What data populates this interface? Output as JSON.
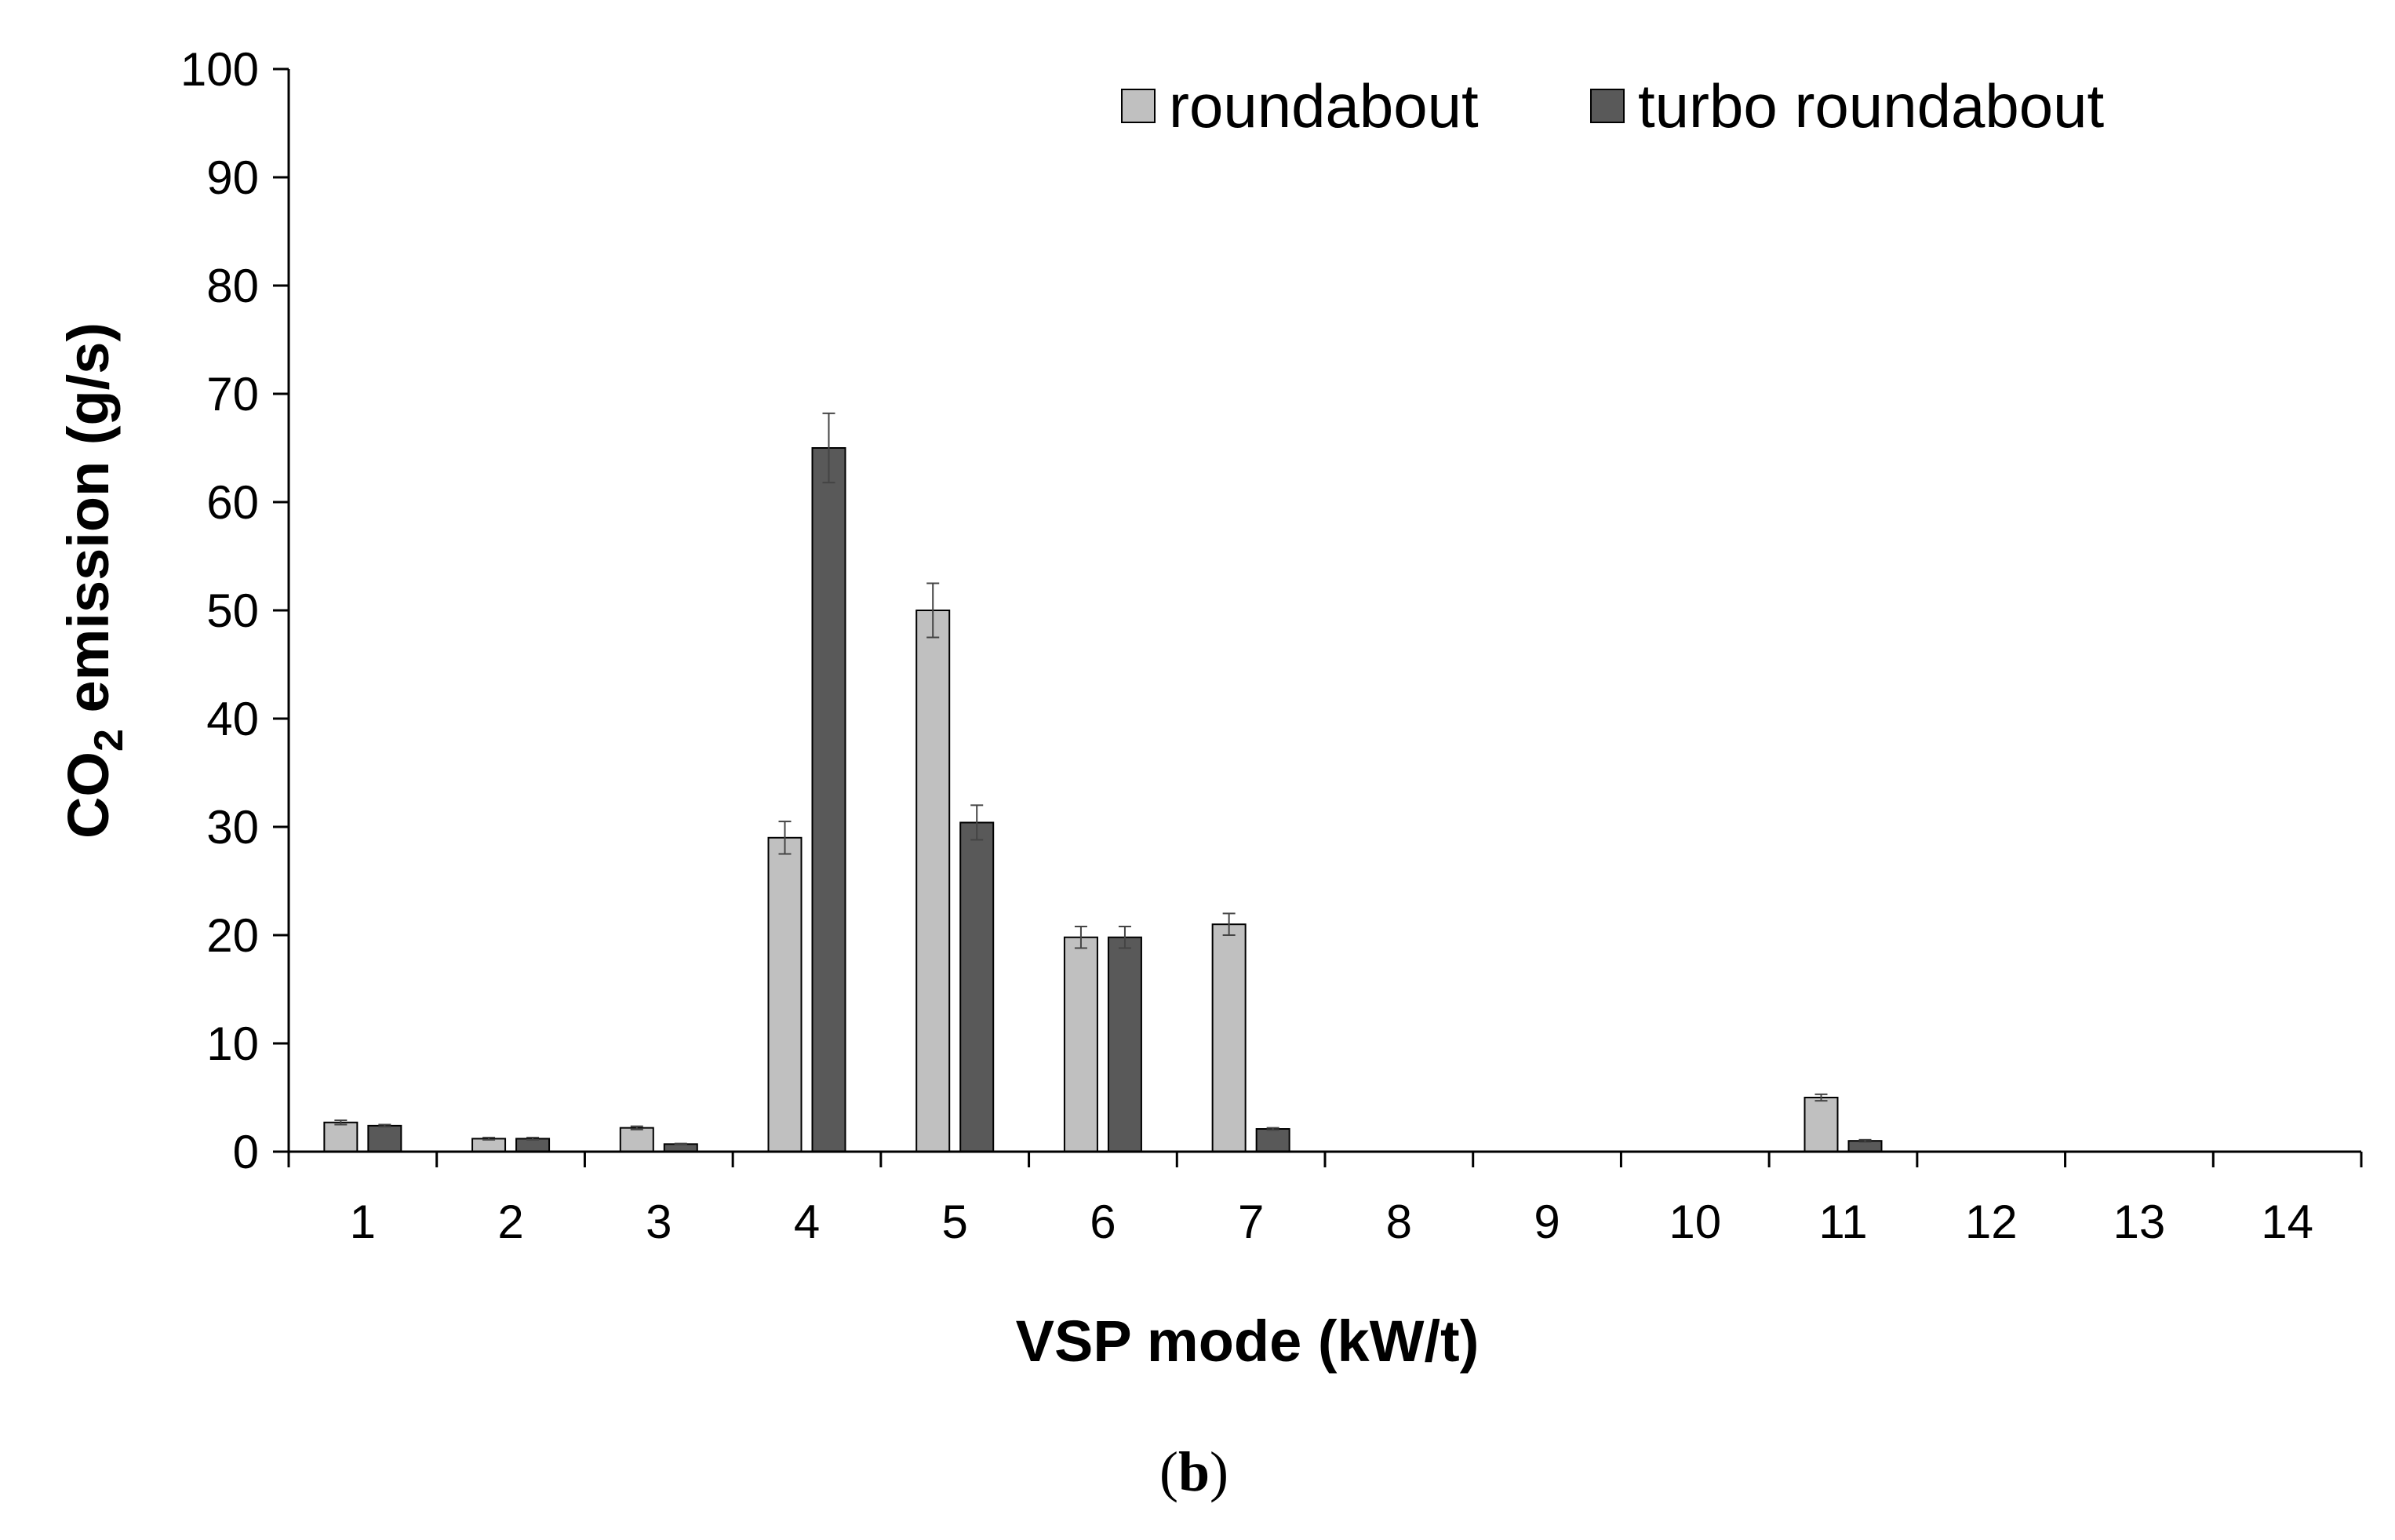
{
  "chart_data": {
    "type": "bar",
    "title": "",
    "xlabel": "VSP mode (kW/t)",
    "ylabel": {
      "prefix": "CO",
      "subscript": "2",
      "suffix": " emission (g/s)"
    },
    "ylim": [
      0,
      100
    ],
    "yticks": [
      0,
      10,
      20,
      30,
      40,
      50,
      60,
      70,
      80,
      90,
      100
    ],
    "categories": [
      "1",
      "2",
      "3",
      "4",
      "5",
      "6",
      "7",
      "8",
      "9",
      "10",
      "11",
      "12",
      "13",
      "14"
    ],
    "series": [
      {
        "name": "roundabout",
        "color": "#c0c0c0",
        "values": [
          2.7,
          1.2,
          2.2,
          29.0,
          50.0,
          19.8,
          21.0,
          0,
          0,
          0,
          5.0,
          0,
          0,
          0
        ],
        "errors": [
          0.2,
          0.1,
          0.15,
          1.5,
          2.5,
          1.0,
          1.0,
          0,
          0,
          0,
          0.3,
          0,
          0,
          0
        ]
      },
      {
        "name": "turbo roundabout",
        "color": "#595959",
        "values": [
          2.4,
          1.2,
          0.7,
          65.0,
          30.4,
          19.8,
          2.1,
          0,
          0,
          0,
          1.0,
          0,
          0,
          0
        ],
        "errors": [
          0.1,
          0.1,
          0.05,
          3.2,
          1.6,
          1.0,
          0.1,
          0,
          0,
          0,
          0.1,
          0,
          0,
          0
        ]
      }
    ],
    "legend_position": "top-right",
    "grid": false
  },
  "panel_label": {
    "open": "(",
    "letter": "b",
    "close": ")"
  }
}
